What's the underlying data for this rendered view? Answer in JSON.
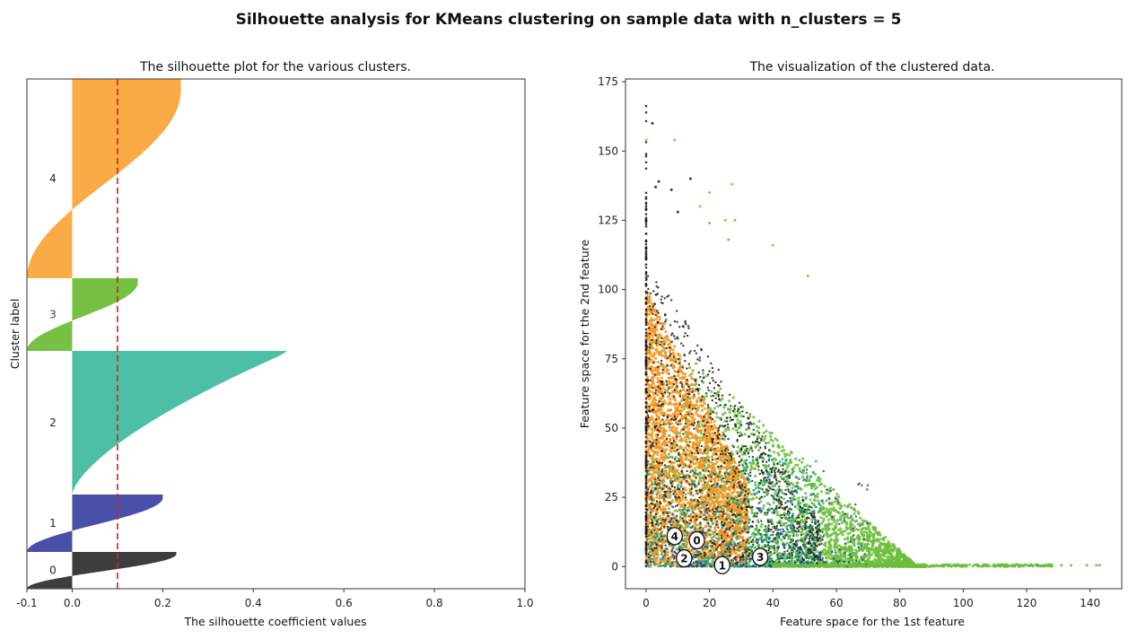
{
  "figure": {
    "suptitle": "Silhouette analysis for KMeans clustering on sample data with n_clusters = 5"
  },
  "colors": {
    "cluster_0": "#3d3d3d",
    "cluster_1": "#4a4fa8",
    "cluster_2": "#4dbfa6",
    "cluster_3": "#76c043",
    "cluster_4": "#f9ab45",
    "avg_line": "#e41a1c",
    "scatter_0": "#1a1a1a",
    "scatter_1": "#1f3a9c",
    "scatter_2": "#15a08a",
    "scatter_3": "#6cbd3c",
    "scatter_4": "#f7941d"
  },
  "chart_data": [
    {
      "type": "area",
      "title": "The silhouette plot for the various clusters.",
      "xlabel": "The silhouette coefficient values",
      "ylabel": "Cluster label",
      "xlim": [
        -0.1,
        1.0
      ],
      "ylim": [
        0,
        5680
      ],
      "xticks": [
        "-0.1",
        "0.0",
        "0.2",
        "0.4",
        "0.6",
        "0.8",
        "1.0"
      ],
      "xtick_values": [
        -0.1,
        0.0,
        0.2,
        0.4,
        0.6,
        0.8,
        1.0
      ],
      "avg_silhouette": 0.1,
      "clusters": [
        {
          "label": "0",
          "y_lower": 0,
          "y_upper": 410,
          "min": -0.1,
          "max": 0.23,
          "zero_cross_frac": 0.32
        },
        {
          "label": "1",
          "y_lower": 410,
          "y_upper": 1050,
          "min": -0.1,
          "max": 0.2,
          "zero_cross_frac": 0.3
        },
        {
          "label": "2",
          "y_lower": 1050,
          "y_upper": 2650,
          "min": 0.0,
          "max": 0.475,
          "zero_cross_frac": 0.0
        },
        {
          "label": "3",
          "y_lower": 2650,
          "y_upper": 3460,
          "min": -0.1,
          "max": 0.145,
          "zero_cross_frac": 0.7
        },
        {
          "label": "4",
          "y_lower": 3460,
          "y_upper": 5680,
          "min": -0.1,
          "max": 0.24,
          "zero_cross_frac": 0.23
        }
      ]
    },
    {
      "type": "scatter",
      "title": "The visualization of the clustered data.",
      "xlabel": "Feature space for the 1st feature",
      "ylabel": "Feature space for the 2nd feature",
      "xlim": [
        -6.5,
        150
      ],
      "ylim": [
        -8,
        176
      ],
      "xticks": [
        "0",
        "20",
        "40",
        "60",
        "80",
        "100",
        "120",
        "140"
      ],
      "xtick_values": [
        0,
        20,
        40,
        60,
        80,
        100,
        120,
        140
      ],
      "yticks": [
        "0",
        "25",
        "50",
        "75",
        "100",
        "125",
        "150",
        "175"
      ],
      "ytick_values": [
        0,
        25,
        50,
        75,
        100,
        125,
        150,
        175
      ],
      "centers": [
        {
          "label": "0",
          "x": 16,
          "y": 9.5
        },
        {
          "label": "1",
          "x": 24,
          "y": 0.5
        },
        {
          "label": "2",
          "x": 12,
          "y": 3
        },
        {
          "label": "3",
          "x": 36,
          "y": 3.5
        },
        {
          "label": "4",
          "x": 9,
          "y": 11
        }
      ]
    }
  ]
}
